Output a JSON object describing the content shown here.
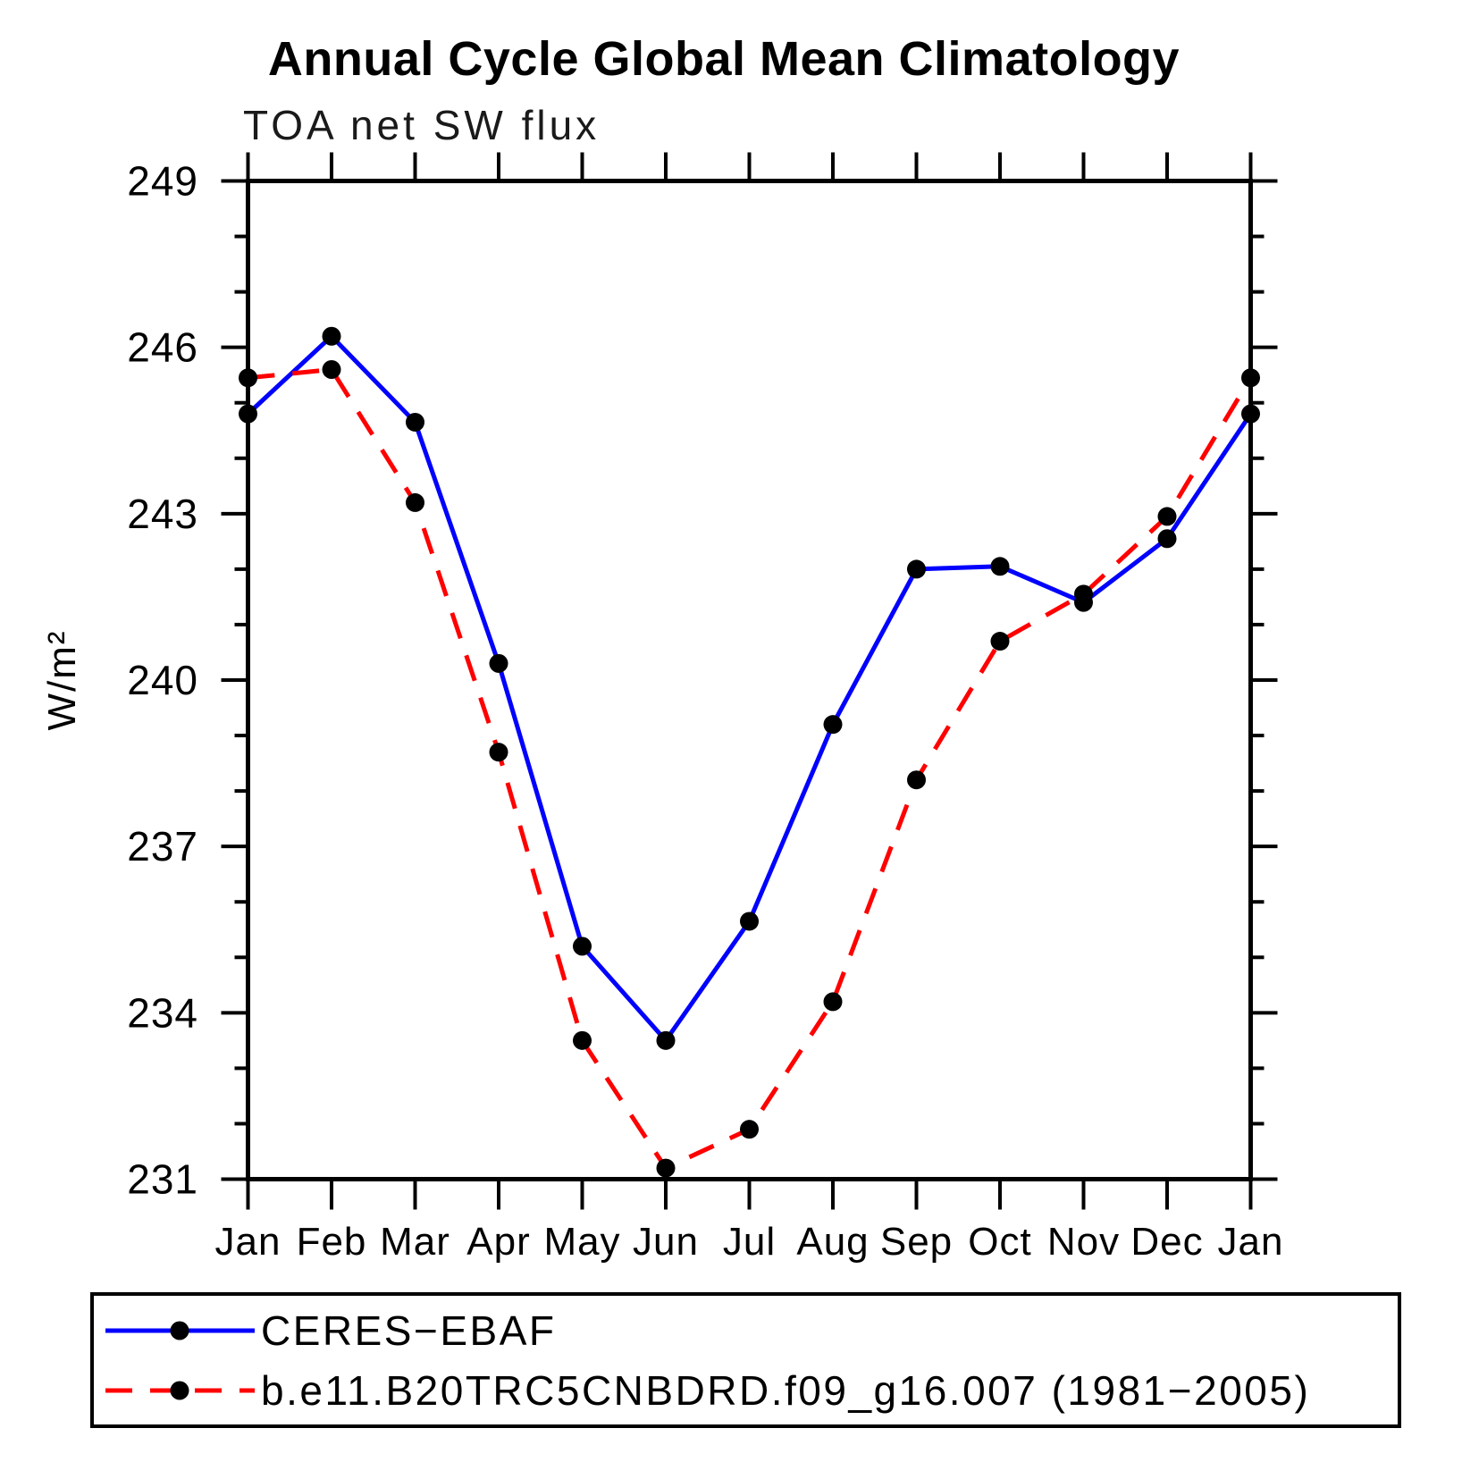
{
  "title": "Annual Cycle Global Mean Climatology",
  "subtitle": "TOA net SW flux",
  "legend": {
    "items": [
      {
        "label": "CERES−EBAF",
        "line_style": "solid",
        "line_color": "#0000ff",
        "marker_color": "#000000"
      },
      {
        "label": "b.e11.B20TRC5CNBDRD.f09_g16.007 (1981−2005)",
        "line_style": "dashed",
        "line_color": "#ff0000",
        "marker_color": "#000000"
      }
    ]
  },
  "chart_data": {
    "type": "line",
    "title": "Annual Cycle Global Mean Climatology",
    "subtitle": "TOA net SW flux",
    "ylabel": "W/m²",
    "categories": [
      "Jan",
      "Feb",
      "Mar",
      "Apr",
      "May",
      "Jun",
      "Jul",
      "Aug",
      "Sep",
      "Oct",
      "Nov",
      "Dec",
      "Jan"
    ],
    "series": [
      {
        "name": "CERES−EBAF",
        "color": "#0000ff",
        "style": "solid",
        "values": [
          244.8,
          246.2,
          244.65,
          240.3,
          235.2,
          233.5,
          235.65,
          239.2,
          242.0,
          242.05,
          241.4,
          242.55,
          244.8
        ]
      },
      {
        "name": "b.e11.B20TRC5CNBDRD.f09_g16.007 (1981−2005)",
        "color": "#ff0000",
        "style": "dashed",
        "values": [
          245.45,
          245.6,
          243.2,
          238.7,
          233.5,
          231.2,
          231.9,
          234.2,
          238.2,
          240.7,
          241.55,
          242.95,
          245.45
        ]
      }
    ],
    "ylim": [
      231,
      249
    ],
    "yticks_major": [
      231,
      234,
      237,
      240,
      243,
      246,
      249
    ],
    "ytick_minor_step": 1,
    "marker": "filled-circle",
    "marker_color": "#000000",
    "grid": false,
    "legend_position": "bottom"
  }
}
